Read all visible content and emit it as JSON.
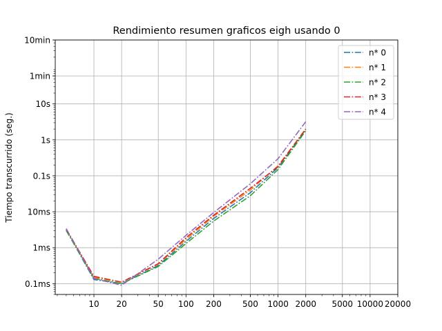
{
  "chart_data": {
    "type": "line",
    "title": "Rendimiento  resumen graficos eigh usando 0",
    "xlabel": "",
    "ylabel": "Tiempo transcurrido (seg.)",
    "x_scale": "log",
    "y_scale": "log",
    "xlim": [
      3.8,
      20000
    ],
    "ylim": [
      5e-05,
      600
    ],
    "grid": true,
    "legend_position": "top-right",
    "x_ticks": [
      {
        "value": 10,
        "label": "10"
      },
      {
        "value": 20,
        "label": "20"
      },
      {
        "value": 50,
        "label": "50"
      },
      {
        "value": 100,
        "label": "100"
      },
      {
        "value": 200,
        "label": "200"
      },
      {
        "value": 500,
        "label": "500"
      },
      {
        "value": 1000,
        "label": "1000"
      },
      {
        "value": 2000,
        "label": "2000"
      },
      {
        "value": 5000,
        "label": "5000"
      },
      {
        "value": 10000,
        "label": "10000"
      },
      {
        "value": 20000,
        "label": "20000"
      }
    ],
    "y_ticks": [
      {
        "value": 0.0001,
        "label": "0.1ms"
      },
      {
        "value": 0.001,
        "label": "1ms"
      },
      {
        "value": 0.01,
        "label": "10ms"
      },
      {
        "value": 0.1,
        "label": "0.1s"
      },
      {
        "value": 1,
        "label": "1s"
      },
      {
        "value": 10,
        "label": "10s"
      },
      {
        "value": 60,
        "label": "1min"
      },
      {
        "value": 600,
        "label": "10min"
      }
    ],
    "x": [
      5,
      10,
      20,
      50,
      100,
      200,
      500,
      1000,
      2000
    ],
    "series": [
      {
        "name": "n* 0",
        "color": "#1f77b4",
        "values": [
          0.0031,
          0.00013,
          0.0001,
          0.00032,
          0.0015,
          0.0065,
          0.034,
          0.17,
          1.9
        ]
      },
      {
        "name": "n* 1",
        "color": "#ff7f0e",
        "values": [
          0.0031,
          0.00015,
          0.00011,
          0.00035,
          0.0017,
          0.0075,
          0.04,
          0.19,
          2.0
        ]
      },
      {
        "name": "n* 2",
        "color": "#2ca02c",
        "values": [
          0.003,
          0.00014,
          0.0001,
          0.0003,
          0.0013,
          0.0055,
          0.028,
          0.15,
          1.8
        ]
      },
      {
        "name": "n* 3",
        "color": "#d62728",
        "values": [
          0.0033,
          0.00016,
          0.00011,
          0.00036,
          0.0019,
          0.008,
          0.045,
          0.18,
          2.0
        ]
      },
      {
        "name": "n* 4",
        "color": "#9467bd",
        "values": [
          0.0034,
          0.00014,
          9e-05,
          0.00048,
          0.0022,
          0.0095,
          0.06,
          0.3,
          3.2
        ]
      }
    ]
  }
}
